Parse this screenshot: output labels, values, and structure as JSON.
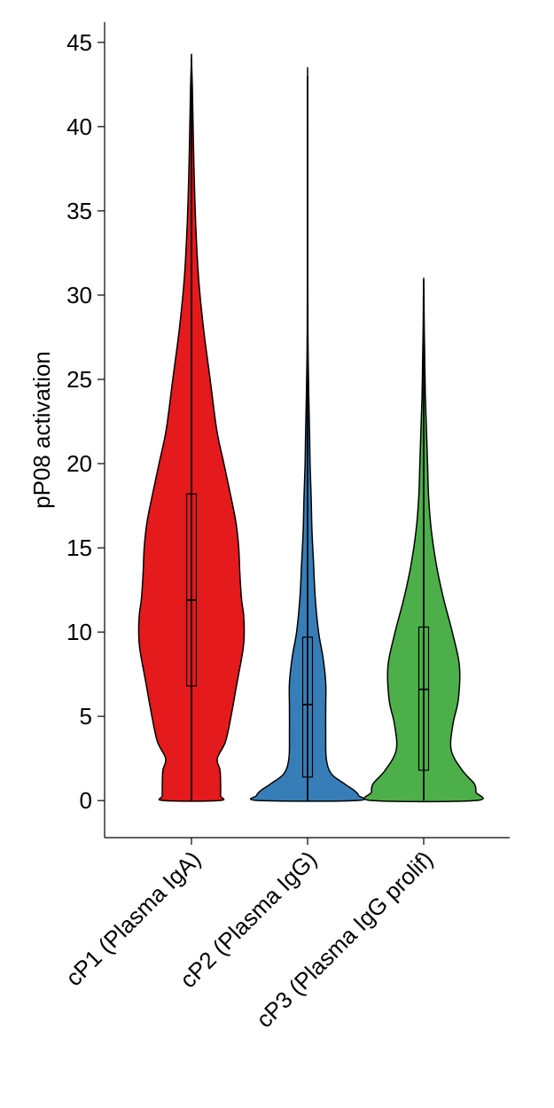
{
  "chart_data": {
    "type": "violin",
    "title": "",
    "xlabel": "",
    "ylabel": "pP08 activation",
    "ylim": [
      -2.2,
      46.2
    ],
    "yticks": [
      0,
      5,
      10,
      15,
      20,
      25,
      30,
      35,
      40,
      45
    ],
    "categories": [
      "cP1 (Plasma IgA)",
      "cP2 (Plasma IgG)",
      "cP3 (Plasma IgG prolif)"
    ],
    "grid": false,
    "legend": "none",
    "series": [
      {
        "category": "cP1 (Plasma IgA)",
        "color": "#e41a1c",
        "min": 0,
        "q1": 6.8,
        "median": 11.9,
        "q3": 18.2,
        "whisker_high": 35.2,
        "max": 44.1,
        "density": [
          [
            0,
            0.51
          ],
          [
            0.3,
            0.53
          ],
          [
            1,
            0.53
          ],
          [
            1.8,
            0.52
          ],
          [
            2.5,
            0.47
          ],
          [
            3.5,
            0.62
          ],
          [
            5,
            0.72
          ],
          [
            7,
            0.83
          ],
          [
            9,
            0.94
          ],
          [
            10,
            0.96
          ],
          [
            11,
            0.95
          ],
          [
            12,
            0.91
          ],
          [
            13.5,
            0.88
          ],
          [
            15,
            0.86
          ],
          [
            16.5,
            0.81
          ],
          [
            18,
            0.72
          ],
          [
            20,
            0.59
          ],
          [
            22,
            0.46
          ],
          [
            25,
            0.34
          ],
          [
            28,
            0.22
          ],
          [
            31,
            0.13
          ],
          [
            34,
            0.08
          ],
          [
            37,
            0.05
          ],
          [
            40,
            0.03
          ],
          [
            42.5,
            0.015
          ],
          [
            44.1,
            0
          ]
        ]
      },
      {
        "category": "cP2 (Plasma IgG)",
        "color": "#377eb8",
        "min": 0,
        "q1": 1.4,
        "median": 5.7,
        "q3": 9.7,
        "whisker_high": 22.0,
        "max": 43.0,
        "density": [
          [
            0,
            0.89
          ],
          [
            0.3,
            0.93
          ],
          [
            0.6,
            0.85
          ],
          [
            1,
            0.67
          ],
          [
            1.6,
            0.43
          ],
          [
            2.5,
            0.34
          ],
          [
            4,
            0.33
          ],
          [
            5.5,
            0.33
          ],
          [
            7,
            0.33
          ],
          [
            8.5,
            0.28
          ],
          [
            10,
            0.2
          ],
          [
            12,
            0.14
          ],
          [
            14,
            0.11
          ],
          [
            16,
            0.08
          ],
          [
            18,
            0.065
          ],
          [
            20,
            0.045
          ],
          [
            22,
            0.035
          ],
          [
            24,
            0.022
          ],
          [
            26,
            0.012
          ],
          [
            28,
            0.006
          ],
          [
            31,
            0.004
          ],
          [
            35,
            0.003
          ],
          [
            39,
            0.002
          ],
          [
            43,
            0
          ]
        ]
      },
      {
        "category": "cP3 (Plasma IgG prolif)",
        "color": "#4daf4a",
        "min": 0,
        "q1": 1.8,
        "median": 6.6,
        "q3": 10.3,
        "whisker_high": 22.5,
        "max": 30.9,
        "density": [
          [
            0,
            0.94
          ],
          [
            0.5,
            0.95
          ],
          [
            1,
            0.92
          ],
          [
            1.8,
            0.7
          ],
          [
            3,
            0.5
          ],
          [
            4.5,
            0.53
          ],
          [
            6,
            0.63
          ],
          [
            8,
            0.65
          ],
          [
            10,
            0.52
          ],
          [
            12,
            0.36
          ],
          [
            14,
            0.23
          ],
          [
            16,
            0.14
          ],
          [
            18,
            0.09
          ],
          [
            20,
            0.07
          ],
          [
            22,
            0.05
          ],
          [
            24,
            0.03
          ],
          [
            26,
            0.02
          ],
          [
            28,
            0.01
          ],
          [
            30,
            0.005
          ],
          [
            30.9,
            0
          ]
        ]
      }
    ]
  }
}
